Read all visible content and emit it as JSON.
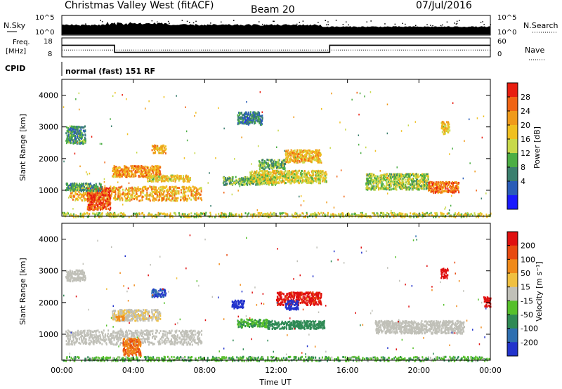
{
  "header": {
    "station": "Christmas Valley West (fitACF)",
    "beam": "Beam 20",
    "date": "07/Jul/2016"
  },
  "nsky_panel": {
    "left_label": "N.Sky",
    "right_label": "N.Search",
    "left_ticks": [
      "10^5",
      "10^0"
    ],
    "right_ticks": [
      "10^5",
      "10^0"
    ]
  },
  "freq_panel": {
    "left_label_1": "Freq.",
    "left_label_2": "[MHz]",
    "right_label": "Nave",
    "left_ticks": [
      "18",
      "8"
    ],
    "right_ticks": [
      "60",
      "0"
    ],
    "freq_segments": [
      {
        "start": 0.0,
        "end": 2.95,
        "value_mhz": 14.5
      },
      {
        "start": 2.95,
        "end": 15.0,
        "value_mhz": 10.3
      },
      {
        "start": 15.0,
        "end": 24.0,
        "value_mhz": 14.5
      }
    ],
    "nave_level": 22
  },
  "cpid_panel": {
    "label": "CPID",
    "mode_text": "normal (fast) 151 RF"
  },
  "power_panel": {
    "ylabel": "Slant Range [km]",
    "yticks": [
      "4000",
      "3000",
      "2000",
      "1000"
    ],
    "colorbar_label": "Power [dB]",
    "colorbar_ticks": [
      "28",
      "24",
      "20",
      "16",
      "12",
      "8",
      "4"
    ],
    "colors": [
      "#1a1aff",
      "#2a5db8",
      "#3b7f6e",
      "#4cae44",
      "#c8d94a",
      "#f0c020",
      "#f09a1a",
      "#f06414",
      "#e81e10"
    ]
  },
  "velocity_panel": {
    "ylabel": "Slant Range [km]",
    "yticks": [
      "4000",
      "3000",
      "2000",
      "1000"
    ],
    "colorbar_label": "Velocity [m s⁻¹]",
    "colorbar_ticks": [
      "200",
      "100",
      "50",
      "15",
      "-15",
      "-50",
      "-100",
      "-200"
    ],
    "colors": [
      "#2233cc",
      "#2e6fb0",
      "#2f8a55",
      "#56c02b",
      "#c0c0b8",
      "#f0c040",
      "#f08a1a",
      "#e84a10",
      "#e01010"
    ]
  },
  "x_axis": {
    "ticks": [
      "00:00",
      "04:00",
      "08:00",
      "12:00",
      "16:00",
      "20:00",
      "00:00"
    ],
    "label": "Time UT"
  },
  "chart_data": {
    "type": "heatmap",
    "title": "Christmas Valley West (fitACF) Beam 20 07/Jul/2016",
    "xlabel": "Time UT",
    "ylabel": "Slant Range [km]",
    "xlim_hours": [
      0,
      24
    ],
    "ylim_km": [
      180,
      4500
    ],
    "power_scale_db": [
      0,
      30
    ],
    "velocity_scale_ms": [
      -200,
      200
    ],
    "power_regions": [
      {
        "t0": 0.0,
        "t1": 24.0,
        "r0": 180,
        "r1": 320,
        "val": 16
      },
      {
        "t0": 0.4,
        "t1": 7.8,
        "r0": 700,
        "r1": 1150,
        "val": 20
      },
      {
        "t0": 1.4,
        "t1": 2.7,
        "r0": 400,
        "r1": 1100,
        "val": 26
      },
      {
        "t0": 2.8,
        "t1": 5.5,
        "r0": 1450,
        "r1": 1800,
        "val": 22
      },
      {
        "t0": 4.7,
        "t1": 7.2,
        "r0": 1300,
        "r1": 1500,
        "val": 18
      },
      {
        "t0": 0.2,
        "t1": 2.2,
        "r0": 1000,
        "r1": 1250,
        "val": 10
      },
      {
        "t0": 0.2,
        "t1": 1.3,
        "r0": 2500,
        "r1": 3050,
        "val": 9
      },
      {
        "t0": 9.0,
        "t1": 12.0,
        "r0": 1200,
        "r1": 1450,
        "val": 12
      },
      {
        "t0": 10.5,
        "t1": 14.8,
        "r0": 1250,
        "r1": 1650,
        "val": 16
      },
      {
        "t0": 12.5,
        "t1": 14.5,
        "r0": 1900,
        "r1": 2300,
        "val": 20
      },
      {
        "t0": 11.0,
        "t1": 12.5,
        "r0": 1700,
        "r1": 2000,
        "val": 12
      },
      {
        "t0": 17.0,
        "t1": 20.5,
        "r0": 1050,
        "r1": 1550,
        "val": 14
      },
      {
        "t0": 20.5,
        "t1": 22.2,
        "r0": 950,
        "r1": 1300,
        "val": 24
      },
      {
        "t0": 21.2,
        "t1": 21.7,
        "r0": 2800,
        "r1": 3200,
        "val": 18
      },
      {
        "t0": 9.8,
        "t1": 11.2,
        "r0": 3100,
        "r1": 3500,
        "val": 8
      },
      {
        "t0": 5.0,
        "t1": 5.8,
        "r0": 2200,
        "r1": 2450,
        "val": 20
      }
    ],
    "velocity_regions": [
      {
        "t0": 0.0,
        "t1": 24.0,
        "r0": 180,
        "r1": 320,
        "val": 25
      },
      {
        "t0": 0.2,
        "t1": 7.8,
        "r0": 700,
        "r1": 1150,
        "val": 0
      },
      {
        "t0": 2.8,
        "t1": 5.5,
        "r0": 1450,
        "r1": 1800,
        "val": -10
      },
      {
        "t0": 3.4,
        "t1": 4.4,
        "r0": 350,
        "r1": 900,
        "val": -70
      },
      {
        "t0": 3.0,
        "t1": 3.5,
        "r0": 1450,
        "r1": 1600,
        "val": -45
      },
      {
        "t0": 9.8,
        "t1": 11.5,
        "r0": 1250,
        "r1": 1500,
        "val": 30
      },
      {
        "t0": 11.5,
        "t1": 14.7,
        "r0": 1200,
        "r1": 1450,
        "val": 55
      },
      {
        "t0": 12.0,
        "t1": 14.5,
        "r0": 1950,
        "r1": 2350,
        "val": -160
      },
      {
        "t0": 12.5,
        "t1": 13.2,
        "r0": 1800,
        "r1": 2100,
        "val": 190
      },
      {
        "t0": 9.5,
        "t1": 10.2,
        "r0": 1850,
        "r1": 2100,
        "val": 190
      },
      {
        "t0": 17.5,
        "t1": 22.5,
        "r0": 1050,
        "r1": 1450,
        "val": 0
      },
      {
        "t0": 5.0,
        "t1": 5.8,
        "r0": 2200,
        "r1": 2450,
        "val": 150
      },
      {
        "t0": 21.2,
        "t1": 21.6,
        "r0": 2800,
        "r1": 3100,
        "val": -190
      },
      {
        "t0": 23.6,
        "t1": 24.0,
        "r0": 1900,
        "r1": 2200,
        "val": -190
      },
      {
        "t0": 0.2,
        "t1": 1.3,
        "r0": 2700,
        "r1": 3050,
        "val": 0
      }
    ]
  }
}
